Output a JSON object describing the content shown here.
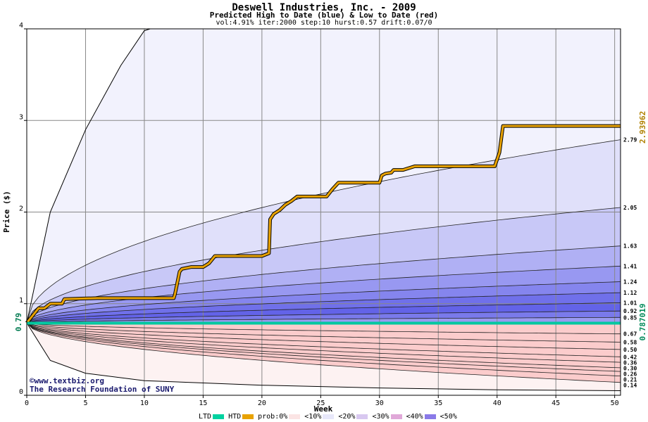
{
  "chart_data": {
    "type": "area",
    "title": "Deswell Industries, Inc. - 2009",
    "subtitle": "Predicted High to Date (blue) &  Low to Date (red)",
    "params": "vol:4.91% iter:2000 step:10 hurst:0.57 drift:0.07/0",
    "xlabel": "Week",
    "ylabel": "Price ($)",
    "xlim": [
      0,
      50.5
    ],
    "ylim": [
      0,
      4
    ],
    "xticks": [
      0,
      5,
      10,
      15,
      20,
      25,
      30,
      35,
      40,
      45,
      50
    ],
    "yticks": [
      0,
      1,
      2,
      3,
      4
    ],
    "start_price": 0.79,
    "start_label": "0.79",
    "grid": true,
    "upper_quantile_ends": [
      2.79,
      2.05,
      1.63,
      1.41,
      1.24,
      1.12,
      1.01,
      0.92,
      0.85
    ],
    "upper_labels": [
      "2.79",
      "2.05",
      "1.63",
      "1.41",
      "1.24",
      "1.12",
      "1.01",
      "0.92",
      "0.85"
    ],
    "upper_fills": [
      "#e0e0fa",
      "#c8c8f7",
      "#b0b0f4",
      "#9898f1",
      "#8585ee",
      "#7070ea",
      "#6363e8",
      "#7a7aeb",
      "#9a9af0"
    ],
    "lower_quantile_ends": [
      0.67,
      0.58,
      0.5,
      0.42,
      0.36,
      0.3,
      0.26,
      0.21,
      0.14
    ],
    "lower_labels": [
      "0.67",
      "0.58",
      "0.50",
      "0.42",
      "0.36",
      "0.30",
      "0.26",
      "0.21",
      "0.14"
    ],
    "lower_fills": [
      "#fde2e2",
      "#fbcccc",
      "#f9b5b5",
      "#f79f9f",
      "#f58a8a",
      "#f47d7d",
      "#f47777",
      "#f58a8a",
      "#fbcccc"
    ],
    "outer_high": {
      "x": [
        0,
        2,
        5,
        8,
        10,
        10.5,
        50.5
      ],
      "y": [
        0.79,
        2.0,
        2.9,
        3.6,
        3.98,
        4.0,
        4.0
      ]
    },
    "outer_low": {
      "x": [
        0,
        2,
        5,
        10,
        20,
        30,
        40,
        50.5
      ],
      "y": [
        0.79,
        0.38,
        0.24,
        0.16,
        0.11,
        0.08,
        0.06,
        0.05
      ]
    },
    "series": [
      {
        "name": "HTD",
        "color": "#e8a200",
        "x": [
          0,
          1,
          1.5,
          2,
          2.5,
          3,
          3.2,
          6,
          10,
          12.5,
          12.6,
          13,
          13.2,
          14,
          15,
          15.5,
          16,
          17,
          18,
          20,
          20.6,
          20.7,
          21,
          21.5,
          22,
          22.5,
          23,
          24,
          25,
          25.5,
          26,
          26.5,
          28,
          30,
          30.2,
          30.5,
          31,
          31.2,
          32,
          33,
          35,
          37,
          39.8,
          40.2,
          40.5,
          50.5
        ],
        "y": [
          0.79,
          0.95,
          0.95,
          1.0,
          1.0,
          1.0,
          1.05,
          1.06,
          1.06,
          1.06,
          1.1,
          1.35,
          1.38,
          1.4,
          1.4,
          1.44,
          1.52,
          1.52,
          1.52,
          1.52,
          1.55,
          1.92,
          1.98,
          2.02,
          2.08,
          2.12,
          2.17,
          2.17,
          2.17,
          2.17,
          2.25,
          2.32,
          2.32,
          2.32,
          2.4,
          2.42,
          2.43,
          2.46,
          2.46,
          2.5,
          2.5,
          2.5,
          2.5,
          2.65,
          2.94,
          2.94
        ]
      },
      {
        "name": "LTD",
        "color": "#00c8a0",
        "x": [
          0,
          1,
          50.5
        ],
        "y": [
          0.787019,
          0.787019,
          0.787019
        ]
      }
    ],
    "htd_final_label": "2.93962",
    "ltd_final_label": "0.787019"
  },
  "legend": {
    "ltd": "LTD",
    "htd": "HTD",
    "prob": "prob:0%",
    "b10": "<10%",
    "b20": "<20%",
    "b30": "<30%",
    "b40": "<40%",
    "b50": "<50%",
    "colors": [
      "#00d2a0",
      "#e8a200",
      "#fbe4e4",
      "#e8e8fa",
      "#d8c8f0",
      "#e0a8d8",
      "#8a7ae8"
    ]
  },
  "credits": {
    "site": "www.textbiz.org",
    "org": "The Research Foundation of SUNY"
  }
}
